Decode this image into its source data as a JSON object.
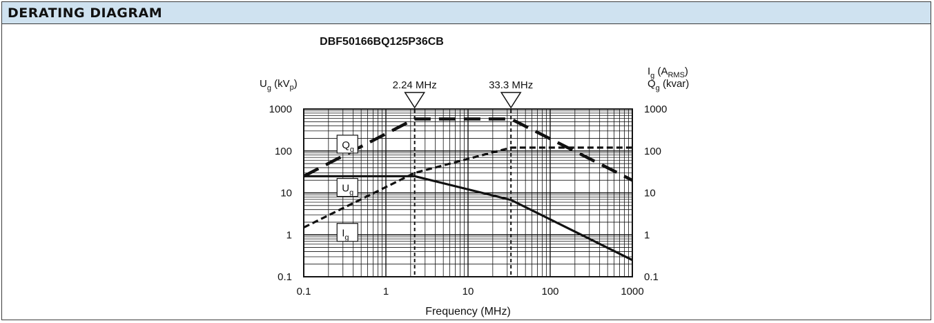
{
  "panel": {
    "title": "DERATING DIAGRAM"
  },
  "chart_data": {
    "type": "line",
    "title": "DBF50166BQ125P36CB",
    "xlabel": "Frequency (MHz)",
    "x_scale": "log",
    "xlim": [
      0.1,
      1000
    ],
    "ylim": [
      0.1,
      1000
    ],
    "y_scale": "log",
    "x_ticks": [
      "0.1",
      "1",
      "10",
      "100",
      "1000"
    ],
    "y_ticks": [
      "1000",
      "100",
      "10",
      "1",
      "0.1"
    ],
    "y_ticks_right": [
      "1000",
      "100",
      "10",
      "1",
      "0.1"
    ],
    "left_axis_label": {
      "main": "U",
      "sub": "g",
      "unit_pre": " (kV",
      "unit_sub": "p",
      "unit_post": ")"
    },
    "right_axis_label_1": {
      "main": "I",
      "sub": "g",
      "unit_pre": "  (A",
      "unit_sub": "RMS",
      "unit_post": ")"
    },
    "right_axis_label_2": {
      "main": "Q",
      "sub": "g",
      "unit_pre": " (kvar)",
      "unit_sub": "",
      "unit_post": ""
    },
    "markers": [
      {
        "x": 2.24,
        "label": "2.24 MHz"
      },
      {
        "x": 33.3,
        "label": "33.3 MHz"
      }
    ],
    "series": [
      {
        "name": "Q",
        "name_sub": "g",
        "style": "long-dash",
        "label_x": 0.34,
        "label_y": 140,
        "x": [
          0.1,
          2.24,
          33.3,
          1000
        ],
        "y": [
          25,
          580,
          580,
          20
        ]
      },
      {
        "name": "U",
        "name_sub": "g",
        "style": "solid",
        "label_x": 0.34,
        "label_y": 13,
        "x": [
          0.1,
          2.24,
          33.3,
          1000
        ],
        "y": [
          25,
          25,
          6.8,
          0.25
        ]
      },
      {
        "name": "I",
        "name_sub": "g",
        "style": "short-dash",
        "label_x": 0.34,
        "label_y": 1.1,
        "x": [
          0.1,
          2.24,
          33.3,
          1000
        ],
        "y": [
          1.5,
          30,
          120,
          120
        ]
      }
    ],
    "grid": true
  }
}
